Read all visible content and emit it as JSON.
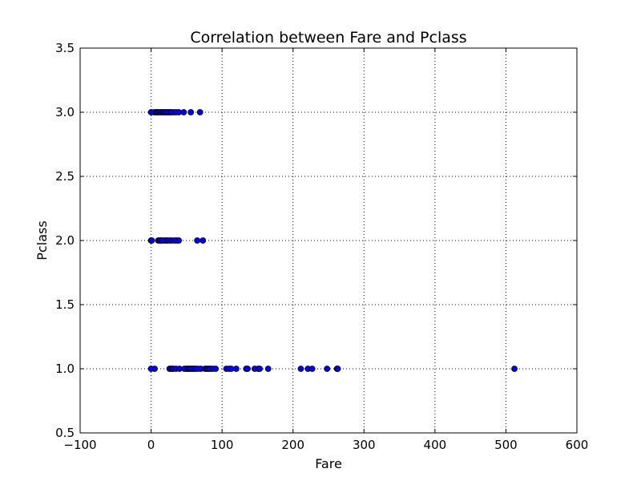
{
  "chart_data": {
    "type": "scatter",
    "title": "Correlation between Fare and Pclass",
    "xlabel": "Fare",
    "ylabel": "Pclass",
    "xlim": [
      -100,
      600
    ],
    "ylim": [
      0.5,
      3.5
    ],
    "xticks": [
      -100,
      0,
      100,
      200,
      300,
      400,
      500,
      600
    ],
    "yticks": [
      0.5,
      1.0,
      1.5,
      2.0,
      2.5,
      3.0,
      3.5
    ],
    "xtick_labels": [
      "−100",
      "0",
      "100",
      "200",
      "300",
      "400",
      "500",
      "600"
    ],
    "ytick_labels": [
      "0.5",
      "1.0",
      "1.5",
      "2.0",
      "2.5",
      "3.0",
      "3.5"
    ],
    "grid": true,
    "marker_color": "#0000ff",
    "series": [
      {
        "points": [
          [
            0,
            3
          ],
          [
            4,
            3
          ],
          [
            7,
            3
          ],
          [
            8,
            3
          ],
          [
            9,
            3
          ],
          [
            11,
            3
          ],
          [
            13,
            3
          ],
          [
            15,
            3
          ],
          [
            17,
            3
          ],
          [
            19,
            3
          ],
          [
            21,
            3
          ],
          [
            23,
            3
          ],
          [
            25,
            3
          ],
          [
            27,
            3
          ],
          [
            29,
            3
          ],
          [
            32,
            3
          ],
          [
            35,
            3
          ],
          [
            39,
            3
          ],
          [
            46,
            3
          ],
          [
            56,
            3
          ],
          [
            69,
            3
          ],
          [
            0,
            2
          ],
          [
            1,
            2
          ],
          [
            10,
            2
          ],
          [
            12,
            2
          ],
          [
            13,
            2
          ],
          [
            15,
            2
          ],
          [
            18,
            2
          ],
          [
            21,
            2
          ],
          [
            23,
            2
          ],
          [
            26,
            2
          ],
          [
            29,
            2
          ],
          [
            33,
            2
          ],
          [
            36,
            2
          ],
          [
            39,
            2
          ],
          [
            65,
            2
          ],
          [
            73,
            2
          ],
          [
            0,
            1
          ],
          [
            5,
            1
          ],
          [
            26,
            1
          ],
          [
            28,
            1
          ],
          [
            30,
            1
          ],
          [
            31,
            1
          ],
          [
            35,
            1
          ],
          [
            40,
            1
          ],
          [
            47,
            1
          ],
          [
            50,
            1
          ],
          [
            52,
            1
          ],
          [
            53,
            1
          ],
          [
            55,
            1
          ],
          [
            57,
            1
          ],
          [
            59,
            1
          ],
          [
            61,
            1
          ],
          [
            63,
            1
          ],
          [
            66,
            1
          ],
          [
            70,
            1
          ],
          [
            76,
            1
          ],
          [
            78,
            1
          ],
          [
            80,
            1
          ],
          [
            82,
            1
          ],
          [
            84,
            1
          ],
          [
            87,
            1
          ],
          [
            91,
            1
          ],
          [
            106,
            1
          ],
          [
            110,
            1
          ],
          [
            113,
            1
          ],
          [
            120,
            1
          ],
          [
            134,
            1
          ],
          [
            136,
            1
          ],
          [
            146,
            1
          ],
          [
            151,
            1
          ],
          [
            153,
            1
          ],
          [
            165,
            1
          ],
          [
            211,
            1
          ],
          [
            221,
            1
          ],
          [
            227,
            1
          ],
          [
            248,
            1
          ],
          [
            262,
            1
          ],
          [
            263,
            1
          ],
          [
            512,
            1
          ]
        ]
      }
    ]
  }
}
